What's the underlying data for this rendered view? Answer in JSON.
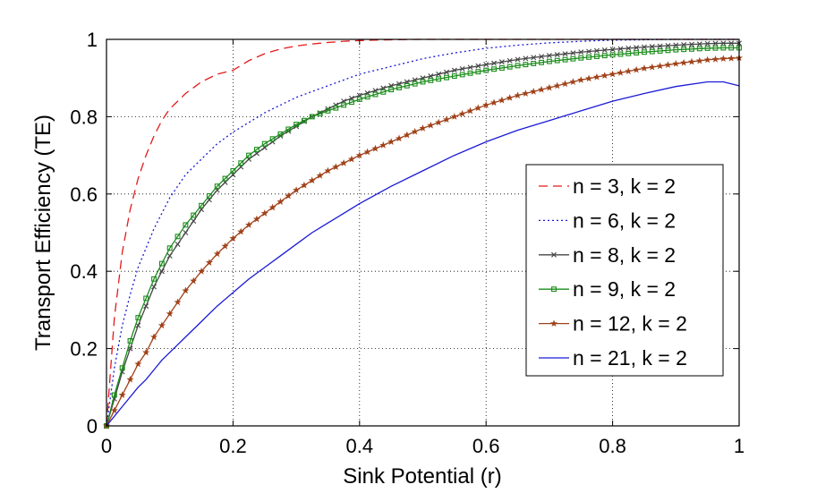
{
  "chart_data": {
    "type": "line",
    "xlabel": "Sink Potential (r)",
    "ylabel": "Transport Efficiency (TE)",
    "xlim": [
      0,
      1
    ],
    "ylim": [
      0,
      1
    ],
    "xticks": [
      "0",
      "0.2",
      "0.4",
      "0.6",
      "0.8",
      "1"
    ],
    "yticks": [
      "0",
      "0.2",
      "0.4",
      "0.6",
      "0.8",
      "1"
    ],
    "grid": true,
    "legend_position": "right",
    "x": [
      0,
      0.0125,
      0.025,
      0.0375,
      0.05,
      0.0625,
      0.075,
      0.0875,
      0.1,
      0.1125,
      0.125,
      0.15,
      0.175,
      0.2,
      0.225,
      0.25,
      0.275,
      0.3,
      0.325,
      0.35,
      0.375,
      0.4,
      0.45,
      0.5,
      0.55,
      0.6,
      0.65,
      0.7,
      0.75,
      0.8,
      0.85,
      0.9,
      0.95,
      0.975,
      1
    ],
    "series": [
      {
        "name": "n = 3, k = 2",
        "color": "#e41a1a",
        "dash": "10,6",
        "marker": "none",
        "values": [
          0,
          0.28,
          0.45,
          0.56,
          0.64,
          0.7,
          0.75,
          0.79,
          0.82,
          0.84,
          0.86,
          0.89,
          0.91,
          0.92,
          0.945,
          0.963,
          0.975,
          0.983,
          0.988,
          0.992,
          0.995,
          0.997,
          0.999,
          1.0,
          1.0,
          1.0,
          1.0,
          1.0,
          1.0,
          1.0,
          1.0,
          1.0,
          1.0,
          1.0,
          1.0
        ]
      },
      {
        "name": "n = 6, k = 2",
        "color": "#1a1ad6",
        "dash": "2,3",
        "marker": "none",
        "values": [
          0,
          0.15,
          0.26,
          0.34,
          0.41,
          0.46,
          0.51,
          0.55,
          0.59,
          0.62,
          0.65,
          0.69,
          0.73,
          0.76,
          0.785,
          0.81,
          0.83,
          0.85,
          0.865,
          0.88,
          0.895,
          0.91,
          0.93,
          0.95,
          0.965,
          0.977,
          0.985,
          0.991,
          0.995,
          0.998,
          0.999,
          1.0,
          1.0,
          1.0,
          1.0
        ]
      },
      {
        "name": "n = 8, k = 2",
        "color": "#444444",
        "dash": "",
        "marker": "x",
        "values": [
          0,
          0.07,
          0.14,
          0.2,
          0.26,
          0.31,
          0.36,
          0.4,
          0.44,
          0.47,
          0.5,
          0.56,
          0.61,
          0.65,
          0.69,
          0.72,
          0.75,
          0.775,
          0.8,
          0.82,
          0.84,
          0.855,
          0.88,
          0.9,
          0.92,
          0.935,
          0.948,
          0.958,
          0.967,
          0.974,
          0.98,
          0.985,
          0.989,
          0.99,
          0.99
        ]
      },
      {
        "name": "n = 9, k = 2",
        "color": "#1a8c1a",
        "dash": "",
        "marker": "square",
        "values": [
          0,
          0.08,
          0.15,
          0.22,
          0.28,
          0.33,
          0.38,
          0.42,
          0.46,
          0.49,
          0.52,
          0.57,
          0.62,
          0.66,
          0.7,
          0.73,
          0.755,
          0.78,
          0.8,
          0.815,
          0.83,
          0.845,
          0.87,
          0.89,
          0.905,
          0.92,
          0.932,
          0.943,
          0.952,
          0.96,
          0.967,
          0.973,
          0.977,
          0.978,
          0.978
        ]
      },
      {
        "name": "n = 12, k = 2",
        "color": "#a0421a",
        "dash": "",
        "marker": "star",
        "values": [
          0,
          0.04,
          0.08,
          0.12,
          0.16,
          0.19,
          0.23,
          0.26,
          0.29,
          0.32,
          0.35,
          0.4,
          0.445,
          0.485,
          0.52,
          0.55,
          0.58,
          0.61,
          0.635,
          0.66,
          0.68,
          0.7,
          0.735,
          0.77,
          0.8,
          0.83,
          0.855,
          0.875,
          0.895,
          0.91,
          0.925,
          0.937,
          0.947,
          0.95,
          0.952
        ]
      },
      {
        "name": "n = 21, k = 2",
        "color": "#1a1ad6",
        "dash": "",
        "marker": "none",
        "values": [
          0,
          0.025,
          0.05,
          0.075,
          0.1,
          0.12,
          0.145,
          0.17,
          0.19,
          0.21,
          0.23,
          0.27,
          0.31,
          0.345,
          0.38,
          0.41,
          0.44,
          0.47,
          0.5,
          0.525,
          0.55,
          0.575,
          0.62,
          0.66,
          0.7,
          0.735,
          0.765,
          0.79,
          0.815,
          0.84,
          0.86,
          0.878,
          0.89,
          0.89,
          0.88
        ]
      }
    ]
  }
}
